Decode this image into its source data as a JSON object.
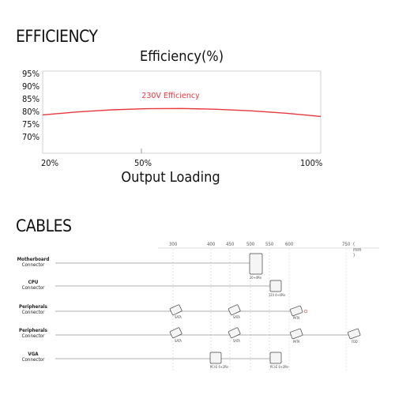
{
  "efficiency_section": {
    "heading": "EFFICIENCY"
  },
  "chart_data": {
    "type": "line",
    "title": "Efficiency(%)",
    "xlabel": "Output Loading",
    "ylabel": "",
    "x_ticks": [
      "20%",
      "50%",
      "100%"
    ],
    "y_ticks": [
      "95%",
      "90%",
      "85%",
      "80%",
      "75%",
      "70%"
    ],
    "ylim": [
      66,
      97
    ],
    "series": [
      {
        "name": "230V Efficiency",
        "color": "#e8373d",
        "x": [
          20,
          30,
          40,
          50,
          60,
          70,
          80,
          90,
          100
        ],
        "y": [
          80.5,
          81.6,
          82.4,
          82.8,
          82.9,
          82.6,
          82.0,
          81.1,
          79.9
        ]
      }
    ],
    "grid": false
  },
  "cables_section": {
    "heading": "CABLES",
    "distance_unit": "( mm )",
    "distances": [
      "300",
      "400",
      "450",
      "500",
      "550",
      "600",
      "750"
    ],
    "rows": [
      {
        "name": "Motherboard",
        "sub": "Connector",
        "connectors": [
          {
            "at": "500",
            "label": "20+4Pin"
          }
        ]
      },
      {
        "name": "CPU",
        "sub": "Connector",
        "connectors": [
          {
            "at": "550",
            "label": "12V 4+4Pin"
          }
        ]
      },
      {
        "name": "Peripherals",
        "sub": "Connector",
        "connectors": [
          {
            "at": "300",
            "label": "SATA"
          },
          {
            "at": "450",
            "label": "SATA"
          },
          {
            "at": "600",
            "label": "PATA"
          }
        ]
      },
      {
        "name": "Peripherals",
        "sub": "Connector",
        "connectors": [
          {
            "at": "300",
            "label": "SATA"
          },
          {
            "at": "450",
            "label": "SATA"
          },
          {
            "at": "600",
            "label": "PATA"
          },
          {
            "at": "750",
            "label": "FDD"
          }
        ]
      },
      {
        "name": "VGA",
        "sub": "Connector",
        "connectors": [
          {
            "at": "400",
            "label": "PCI-E 6+2Pin"
          },
          {
            "at": "550",
            "label": "PCI-E 6+2Pin"
          }
        ]
      }
    ]
  }
}
